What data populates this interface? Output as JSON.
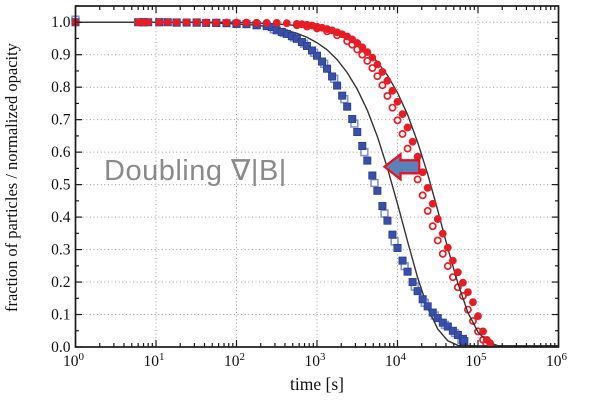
{
  "chart_data": {
    "type": "scatter",
    "title": "",
    "xlabel": "time [s]",
    "ylabel": "fraction of particles / normalized opacity",
    "x_scale": "log",
    "xlim": [
      1,
      1000000
    ],
    "ylim": [
      0,
      1.05
    ],
    "x_ticks": [
      {
        "decade": 0,
        "label": "10^0"
      },
      {
        "decade": 1,
        "label": "10^1"
      },
      {
        "decade": 2,
        "label": "10^2"
      },
      {
        "decade": 3,
        "label": "10^3"
      },
      {
        "decade": 4,
        "label": "10^4"
      },
      {
        "decade": 5,
        "label": "10^5"
      },
      {
        "decade": 6,
        "label": "10^6"
      }
    ],
    "y_ticks": [
      "0.0",
      "0.1",
      "0.2",
      "0.3",
      "0.4",
      "0.5",
      "0.6",
      "0.7",
      "0.8",
      "0.9",
      "1.0"
    ],
    "grid": {
      "color": "#9c9c9c",
      "style": "dotted",
      "vertical_at_decades": [
        1,
        2,
        3,
        4,
        5
      ],
      "horizontal_step": 0.1
    },
    "legend": "none",
    "colors": {
      "red": "#e71d25",
      "blue": "#3a50a7",
      "blue_open_edge": "#8296cc",
      "model_line": "#333333",
      "frame": "#1a1a1a"
    },
    "series": [
      {
        "name": "doubled-gradient-open-squares",
        "type": "scatter",
        "marker": "square-open",
        "color": "#8296cc",
        "points": [
          [
            1,
            1.008
          ],
          [
            7,
            1.0
          ],
          [
            11,
            1.0
          ],
          [
            18,
            0.999
          ],
          [
            32,
            0.999
          ],
          [
            56,
            0.998
          ],
          [
            100,
            0.995
          ],
          [
            178,
            0.991
          ],
          [
            291,
            0.978
          ],
          [
            388,
            0.967
          ],
          [
            517,
            0.953
          ],
          [
            690,
            0.934
          ],
          [
            920,
            0.906
          ],
          [
            1227,
            0.872
          ],
          [
            1636,
            0.826
          ],
          [
            2182,
            0.763
          ],
          [
            2909,
            0.688
          ],
          [
            3879,
            0.6
          ],
          [
            5173,
            0.505
          ],
          [
            6899,
            0.411
          ],
          [
            9200,
            0.325
          ],
          [
            12268,
            0.249
          ],
          [
            16360,
            0.186
          ],
          [
            21817,
            0.136
          ],
          [
            29093,
            0.097
          ],
          [
            38796,
            0.068
          ],
          [
            51736,
            0.043
          ],
          [
            62167,
            0.022
          ]
        ]
      },
      {
        "name": "normal-gradient-open-circles",
        "type": "scatter",
        "marker": "circle-open",
        "color": "#e71d25",
        "points": [
          [
            178,
            0.998
          ],
          [
            237,
            0.997
          ],
          [
            316,
            0.996
          ],
          [
            562,
            0.991
          ],
          [
            750,
            0.987
          ],
          [
            1000,
            0.981
          ],
          [
            1334,
            0.972
          ],
          [
            1778,
            0.96
          ],
          [
            2371,
            0.942
          ],
          [
            2738,
            0.931
          ],
          [
            3162,
            0.916
          ],
          [
            3652,
            0.9
          ],
          [
            4217,
            0.881
          ],
          [
            4870,
            0.859
          ],
          [
            5623,
            0.834
          ],
          [
            6494,
            0.806
          ],
          [
            7499,
            0.773
          ],
          [
            8660,
            0.737
          ],
          [
            10000,
            0.698
          ],
          [
            11548,
            0.656
          ],
          [
            13335,
            0.611
          ],
          [
            15399,
            0.564
          ],
          [
            17783,
            0.516
          ],
          [
            20535,
            0.467
          ],
          [
            23714,
            0.419
          ],
          [
            27384,
            0.372
          ],
          [
            31623,
            0.328
          ],
          [
            36517,
            0.287
          ],
          [
            42170,
            0.249
          ],
          [
            48697,
            0.215
          ],
          [
            56234,
            0.184
          ],
          [
            64938,
            0.157
          ],
          [
            74989,
            0.115
          ],
          [
            86596,
            0.08
          ],
          [
            100000,
            0.048
          ],
          [
            115478,
            0.022
          ],
          [
            125893,
            0.012
          ]
        ]
      },
      {
        "name": "model-curve-doubled-gradient",
        "type": "line",
        "color": "#333333",
        "points": [
          [
            1,
            1.0
          ],
          [
            10,
            1.0
          ],
          [
            32,
            1.0
          ],
          [
            100,
            0.995
          ],
          [
            178,
            0.991
          ],
          [
            316,
            0.982
          ],
          [
            422,
            0.975
          ],
          [
            562,
            0.966
          ],
          [
            750,
            0.954
          ],
          [
            1000,
            0.937
          ],
          [
            1334,
            0.915
          ],
          [
            1778,
            0.885
          ],
          [
            2371,
            0.845
          ],
          [
            3162,
            0.794
          ],
          [
            4217,
            0.729
          ],
          [
            5623,
            0.648
          ],
          [
            7499,
            0.551
          ],
          [
            10000,
            0.441
          ],
          [
            13335,
            0.325
          ],
          [
            17783,
            0.214
          ],
          [
            23714,
            0.12
          ],
          [
            31623,
            0.055
          ],
          [
            42170,
            0.019
          ],
          [
            56234,
            0.005
          ],
          [
            100000,
            0.002
          ],
          [
            1000000,
            0.002
          ]
        ]
      },
      {
        "name": "model-curve-normal-gradient",
        "type": "line",
        "color": "#333333",
        "points": [
          [
            1,
            1.0
          ],
          [
            100,
            1.0
          ],
          [
            316,
            0.995
          ],
          [
            562,
            0.99
          ],
          [
            1000,
            0.981
          ],
          [
            1778,
            0.964
          ],
          [
            3162,
            0.934
          ],
          [
            4217,
            0.91
          ],
          [
            5623,
            0.878
          ],
          [
            7499,
            0.837
          ],
          [
            10000,
            0.783
          ],
          [
            13335,
            0.715
          ],
          [
            17783,
            0.631
          ],
          [
            23714,
            0.532
          ],
          [
            31623,
            0.42
          ],
          [
            42170,
            0.304
          ],
          [
            56234,
            0.196
          ],
          [
            74989,
            0.106
          ],
          [
            100000,
            0.046
          ],
          [
            133352,
            0.015
          ],
          [
            177828,
            0.003
          ],
          [
            316228,
            0.002
          ],
          [
            1000000,
            0.002
          ]
        ]
      },
      {
        "name": "doubled-gradient-filled-squares",
        "type": "scatter",
        "marker": "square",
        "color": "#3a50a7",
        "points": [
          [
            1,
            1.0
          ],
          [
            6,
            1.0
          ],
          [
            7,
            1.0
          ],
          [
            8,
            1.0
          ],
          [
            11,
            1.0
          ],
          [
            14,
            1.0
          ],
          [
            18,
            0.999
          ],
          [
            24,
            0.999
          ],
          [
            32,
            0.999
          ],
          [
            42,
            0.998
          ],
          [
            56,
            0.998
          ],
          [
            75,
            0.997
          ],
          [
            100,
            0.995
          ],
          [
            133,
            0.994
          ],
          [
            178,
            0.991
          ],
          [
            237,
            0.988
          ],
          [
            274,
            0.985
          ],
          [
            316,
            0.975
          ],
          [
            365,
            0.97
          ],
          [
            422,
            0.964
          ],
          [
            487,
            0.957
          ],
          [
            562,
            0.949
          ],
          [
            649,
            0.939
          ],
          [
            750,
            0.927
          ],
          [
            866,
            0.913
          ],
          [
            1000,
            0.897
          ],
          [
            1155,
            0.879
          ],
          [
            1334,
            0.857
          ],
          [
            1540,
            0.833
          ],
          [
            1778,
            0.805
          ],
          [
            2054,
            0.774
          ],
          [
            2371,
            0.74
          ],
          [
            2738,
            0.702
          ],
          [
            3162,
            0.662
          ],
          [
            3652,
            0.619
          ],
          [
            4217,
            0.574
          ],
          [
            4870,
            0.528
          ],
          [
            5623,
            0.481
          ],
          [
            6494,
            0.434
          ],
          [
            7499,
            0.389
          ],
          [
            8660,
            0.346
          ],
          [
            10000,
            0.305
          ],
          [
            11548,
            0.266
          ],
          [
            13335,
            0.232
          ],
          [
            15399,
            0.2
          ],
          [
            17783,
            0.172
          ],
          [
            20535,
            0.147
          ],
          [
            23714,
            0.125
          ],
          [
            27384,
            0.106
          ],
          [
            31623,
            0.089
          ],
          [
            36517,
            0.075
          ],
          [
            42170,
            0.063
          ],
          [
            48697,
            0.05
          ],
          [
            56234,
            0.037
          ],
          [
            64938,
            0.025
          ],
          [
            67608,
            0.018
          ]
        ]
      },
      {
        "name": "normal-gradient-filled-circles",
        "type": "scatter",
        "marker": "circle",
        "color": "#e71d25",
        "points": [
          [
            1,
            1.0
          ],
          [
            6,
            1.0
          ],
          [
            7,
            1.0
          ],
          [
            8,
            1.0
          ],
          [
            11,
            1.0
          ],
          [
            14,
            1.0
          ],
          [
            18,
            1.0
          ],
          [
            24,
            1.0
          ],
          [
            32,
            1.0
          ],
          [
            42,
            0.999
          ],
          [
            56,
            0.999
          ],
          [
            75,
            0.999
          ],
          [
            100,
            0.999
          ],
          [
            133,
            0.999
          ],
          [
            178,
            0.998
          ],
          [
            237,
            0.998
          ],
          [
            316,
            0.998
          ],
          [
            422,
            0.997
          ],
          [
            562,
            0.995
          ],
          [
            649,
            0.994
          ],
          [
            750,
            0.992
          ],
          [
            866,
            0.99
          ],
          [
            1000,
            0.986
          ],
          [
            1155,
            0.983
          ],
          [
            1334,
            0.979
          ],
          [
            1540,
            0.975
          ],
          [
            1778,
            0.969
          ],
          [
            2054,
            0.963
          ],
          [
            2371,
            0.956
          ],
          [
            2738,
            0.947
          ],
          [
            3162,
            0.936
          ],
          [
            3652,
            0.923
          ],
          [
            4217,
            0.908
          ],
          [
            4870,
            0.891
          ],
          [
            5623,
            0.87
          ],
          [
            6494,
            0.847
          ],
          [
            7499,
            0.82
          ],
          [
            8660,
            0.789
          ],
          [
            10000,
            0.755
          ],
          [
            11548,
            0.717
          ],
          [
            13335,
            0.676
          ],
          [
            15399,
            0.632
          ],
          [
            17783,
            0.586
          ],
          [
            20535,
            0.538
          ],
          [
            23714,
            0.49
          ],
          [
            27384,
            0.441
          ],
          [
            31623,
            0.394
          ],
          [
            36517,
            0.349
          ],
          [
            42170,
            0.306
          ],
          [
            48697,
            0.266
          ],
          [
            56234,
            0.23
          ],
          [
            64938,
            0.198
          ],
          [
            74989,
            0.169
          ],
          [
            86596,
            0.138
          ],
          [
            100000,
            0.095
          ],
          [
            115478,
            0.048
          ],
          [
            128825,
            0.022
          ],
          [
            141254,
            0.012
          ]
        ]
      }
    ],
    "annotations": [
      {
        "id": "doubling-label",
        "type": "text",
        "text": "Doubling ∇|B|",
        "color": "#8a8a8a"
      },
      {
        "id": "doubling-arrow",
        "type": "arrow-left",
        "t_tail": 18600,
        "t_tip": 6900,
        "y": 0.555,
        "fill": "#5b82b8",
        "stroke": "#e81123"
      }
    ]
  }
}
